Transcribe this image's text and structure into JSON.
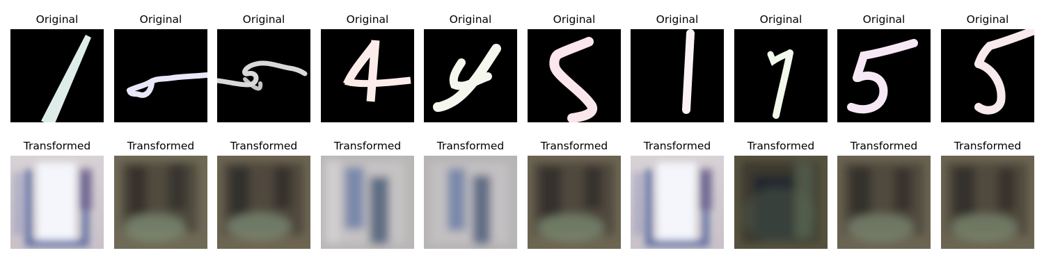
{
  "figure": {
    "rows": [
      {
        "caption": "Original",
        "panels": [
          {
            "caption": "Original",
            "depicts": "digit 1",
            "ink_color": "#eafaf6"
          },
          {
            "caption": "Original",
            "depicts": "digit 5 (skewed)",
            "ink_color": "#e8e8fa"
          },
          {
            "caption": "Original",
            "depicts": "digit 5 (skewed)",
            "ink_color": "#d9d9d9"
          },
          {
            "caption": "Original",
            "depicts": "digit 4",
            "ink_color": "#fbecea"
          },
          {
            "caption": "Original",
            "depicts": "digit 4",
            "ink_color": "#f5f6ee"
          },
          {
            "caption": "Original",
            "depicts": "digit 5",
            "ink_color": "#fbe6ec"
          },
          {
            "caption": "Original",
            "depicts": "digit 1",
            "ink_color": "#fbf3f3"
          },
          {
            "caption": "Original",
            "depicts": "digit 7",
            "ink_color": "#f1f8ec"
          },
          {
            "caption": "Original",
            "depicts": "digit 5",
            "ink_color": "#f7e8f6"
          },
          {
            "caption": "Original",
            "depicts": "digit 5",
            "ink_color": "#f8eaec"
          }
        ]
      },
      {
        "caption": "Transformed",
        "panels": [
          {
            "caption": "Transformed",
            "depicts": "bright blurred U shape",
            "tone": "light"
          },
          {
            "caption": "Transformed",
            "depicts": "dark blurred texture",
            "tone": "dark"
          },
          {
            "caption": "Transformed",
            "depicts": "dark blurred texture",
            "tone": "dark"
          },
          {
            "caption": "Transformed",
            "depicts": "grey blurred shape",
            "tone": "mid"
          },
          {
            "caption": "Transformed",
            "depicts": "grey blurred shape",
            "tone": "mid"
          },
          {
            "caption": "Transformed",
            "depicts": "dark blurred texture",
            "tone": "dark"
          },
          {
            "caption": "Transformed",
            "depicts": "bright blurred U shape",
            "tone": "light"
          },
          {
            "caption": "Transformed",
            "depicts": "dark blurred texture",
            "tone": "darkest"
          },
          {
            "caption": "Transformed",
            "depicts": "dark blurred texture",
            "tone": "dark"
          },
          {
            "caption": "Transformed",
            "depicts": "dark blurred texture",
            "tone": "dark"
          }
        ]
      }
    ]
  }
}
